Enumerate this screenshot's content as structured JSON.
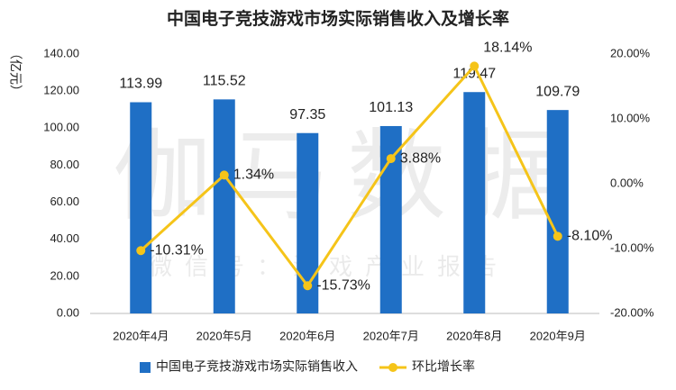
{
  "chart_data": {
    "type": "bar_line",
    "title": "中国电子竞技游戏市场实际销售收入及增长率",
    "y_label": "（亿元）",
    "watermark": "伽马数据",
    "watermark_sub": "微信号：游戏产业报告",
    "categories": [
      "2020年4月",
      "2020年5月",
      "2020年6月",
      "2020年7月",
      "2020年8月",
      "2020年9月"
    ],
    "series": [
      {
        "name": "中国电子竞技游戏市场实际销售收入",
        "color": "#1f6fc5",
        "type": "bar",
        "values": [
          113.99,
          115.52,
          97.35,
          101.13,
          119.47,
          109.79
        ]
      },
      {
        "name": "环比增长率",
        "color": "#f5c419",
        "type": "line",
        "axis": "y2",
        "values": [
          -10.31,
          1.34,
          -15.73,
          3.88,
          18.14,
          -8.1
        ],
        "value_labels": [
          "-10.31%",
          "1.34%",
          "-15.73%",
          "3.88%",
          "18.14%",
          "-8.10%"
        ]
      }
    ],
    "ylim": [
      0,
      140
    ],
    "yticks": [
      {
        "value": 0,
        "label": "0.00"
      },
      {
        "value": 20,
        "label": "20.00"
      },
      {
        "value": 40,
        "label": "40.00"
      },
      {
        "value": 60,
        "label": "60.00"
      },
      {
        "value": 80,
        "label": "80.00"
      },
      {
        "value": 100,
        "label": "100.00"
      },
      {
        "value": 120,
        "label": "120.00"
      },
      {
        "value": 140,
        "label": "140.00"
      }
    ],
    "y2lim": [
      -20,
      20
    ],
    "y2ticks": [
      {
        "value": -20,
        "label": "-20.00%"
      },
      {
        "value": -10,
        "label": "-10.00%"
      },
      {
        "value": 0,
        "label": "0.00%"
      },
      {
        "value": 10,
        "label": "10.00%"
      },
      {
        "value": 20,
        "label": "20.00%"
      }
    ],
    "legend": "bottom"
  }
}
